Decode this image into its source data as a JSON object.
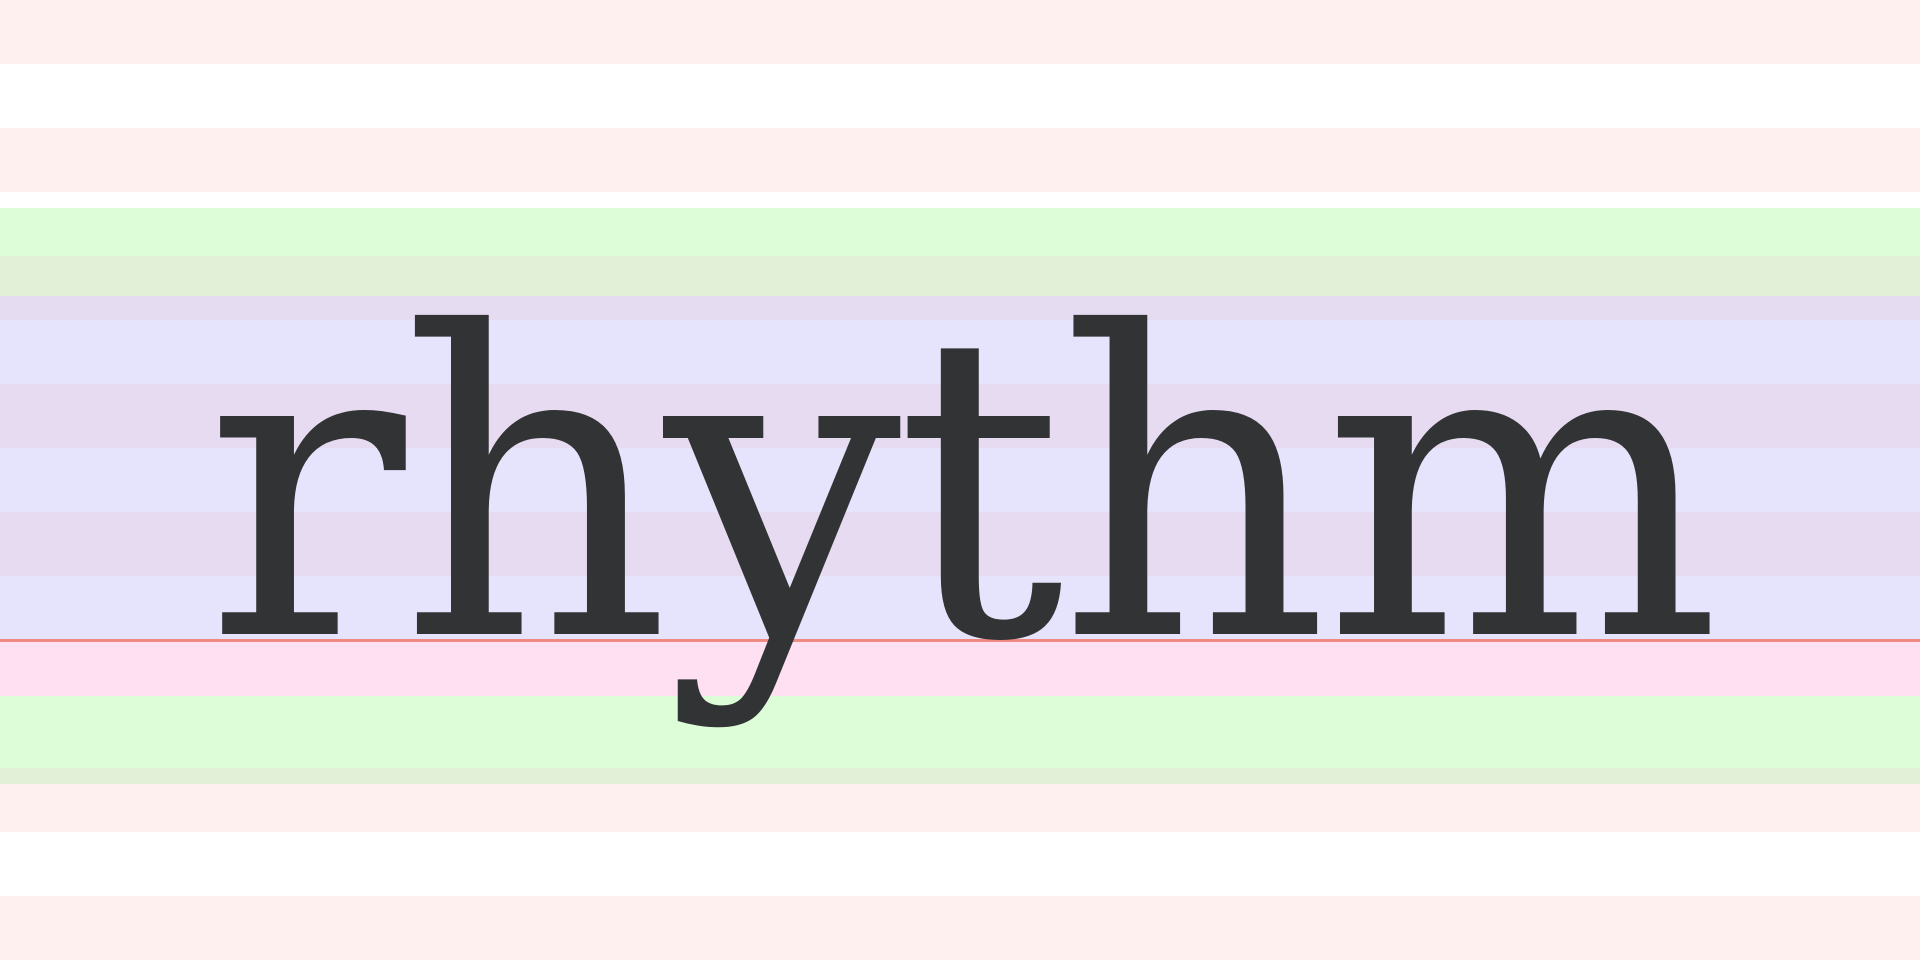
{
  "specimen": {
    "word": "rhythm",
    "colors": {
      "glyph": "#313334",
      "baseline": "#f08a85",
      "stripe_pink": "#fff0f0",
      "stripe_white": "#ffffff",
      "ascender_zone": "#ddfcd8",
      "xheight_zone": "#e6e4fd",
      "overlap_zone": "#e7dbf1",
      "descender_top_zone": "#fee0f2"
    }
  }
}
